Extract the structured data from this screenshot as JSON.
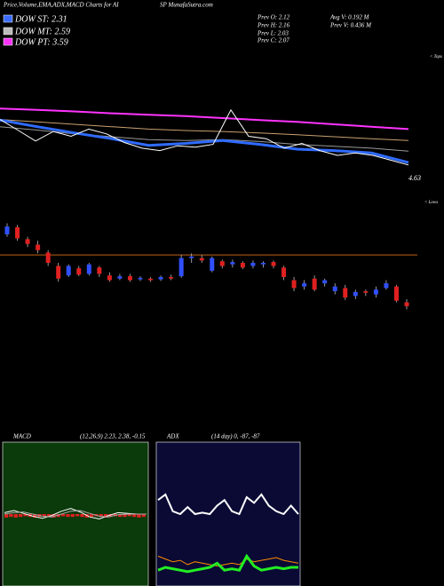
{
  "header": {
    "title_left": "Price,Volume,EMA,ADX,MACD Charts for AI",
    "title_right": "SP MunafaSutra.com",
    "dow_st": "DOW ST: 2.31",
    "dow_mt": "DOW MT: 2.59",
    "dow_pt": "DOW PT: 3.59",
    "prev_o": "Prev  O: 2.12",
    "prev_h": "Prev  H: 2.16",
    "prev_l": "Prev  L: 2.03",
    "prev_c": "Prev  C: 2.07",
    "avg_v": "Avg V: 0.192  M",
    "prev_v": "Prev  V: 0.436  M"
  },
  "chart_data": [
    {
      "type": "line",
      "annotations": [
        "4.63",
        "< Tops",
        "< Lows"
      ],
      "ylim": [
        1.8,
        4.4
      ],
      "series": [
        {
          "color": "#ff33ff",
          "width": 2,
          "values": [
            3.43,
            3.4,
            3.37,
            3.33,
            3.3,
            3.27,
            3.23,
            3.19,
            3.15,
            3.1,
            3.05,
            3.0
          ]
        },
        {
          "color": "#c8a070",
          "width": 1,
          "values": [
            3.2,
            3.15,
            3.1,
            3.05,
            3.0,
            2.97,
            2.95,
            2.92,
            2.88,
            2.84,
            2.8,
            2.76
          ]
        },
        {
          "color": "#999999",
          "width": 1,
          "values": [
            3.05,
            2.98,
            2.9,
            2.84,
            2.78,
            2.76,
            2.78,
            2.74,
            2.68,
            2.64,
            2.6,
            2.54
          ]
        },
        {
          "color": "#2f6bff",
          "width": 3,
          "values": [
            3.19,
            3.05,
            2.92,
            2.8,
            2.66,
            2.7,
            2.76,
            2.68,
            2.58,
            2.55,
            2.5,
            2.3
          ]
        },
        {
          "color": "#ffffff",
          "width": 1,
          "values": [
            3.2,
            2.98,
            2.75,
            2.95,
            2.85,
            3.0,
            2.9,
            2.72,
            2.6,
            2.55,
            2.65,
            2.62,
            2.68,
            3.4,
            2.85,
            2.8,
            2.6,
            2.7,
            2.55,
            2.45,
            2.5,
            2.45,
            2.35,
            2.25
          ]
        }
      ]
    },
    {
      "type": "candlestick",
      "ylim": [
        1.9,
        3.25
      ],
      "hline": 2.72,
      "up_color": "#3050ff",
      "down_color": "#e02020",
      "open": [
        2.98,
        3.07,
        2.92,
        2.85,
        2.75,
        2.58,
        2.46,
        2.55,
        2.48,
        2.56,
        2.46,
        2.42,
        2.45,
        2.41,
        2.42,
        2.41,
        2.44,
        2.45,
        2.68,
        2.68,
        2.52,
        2.64,
        2.6,
        2.62,
        2.58,
        2.6,
        2.63,
        2.56,
        2.4,
        2.32,
        2.42,
        2.36,
        2.26,
        2.3,
        2.2,
        2.26,
        2.22,
        2.3,
        2.32,
        2.12
      ],
      "high": [
        3.12,
        3.1,
        2.95,
        2.9,
        2.78,
        2.62,
        2.6,
        2.58,
        2.62,
        2.58,
        2.5,
        2.48,
        2.48,
        2.45,
        2.44,
        2.46,
        2.47,
        2.72,
        2.74,
        2.72,
        2.7,
        2.66,
        2.66,
        2.64,
        2.65,
        2.64,
        2.65,
        2.58,
        2.44,
        2.4,
        2.46,
        2.42,
        2.36,
        2.34,
        2.28,
        2.28,
        2.32,
        2.4,
        2.34,
        2.16
      ],
      "low": [
        2.95,
        2.9,
        2.82,
        2.74,
        2.58,
        2.38,
        2.44,
        2.45,
        2.46,
        2.44,
        2.38,
        2.4,
        2.38,
        2.39,
        2.38,
        2.39,
        2.4,
        2.43,
        2.62,
        2.62,
        2.5,
        2.55,
        2.56,
        2.54,
        2.55,
        2.56,
        2.55,
        2.4,
        2.26,
        2.28,
        2.26,
        2.32,
        2.22,
        2.15,
        2.16,
        2.2,
        2.18,
        2.28,
        2.12,
        2.03
      ],
      "close": [
        3.08,
        2.93,
        2.86,
        2.78,
        2.62,
        2.42,
        2.58,
        2.47,
        2.6,
        2.48,
        2.4,
        2.45,
        2.4,
        2.43,
        2.4,
        2.44,
        2.42,
        2.68,
        2.7,
        2.65,
        2.68,
        2.58,
        2.63,
        2.56,
        2.62,
        2.62,
        2.58,
        2.44,
        2.3,
        2.36,
        2.28,
        2.4,
        2.32,
        2.18,
        2.25,
        2.24,
        2.28,
        2.36,
        2.14,
        2.07
      ]
    },
    {
      "type": "macd",
      "title": "MACD",
      "subtitle": "(12,26,9) 2.23, 2.38, -0.15",
      "ylim": [
        -1,
        1
      ],
      "histogram_color": "#e02020",
      "histogram": [
        -0.05,
        -0.04,
        -0.05,
        -0.04,
        -0.03,
        -0.04,
        -0.05,
        -0.04,
        -0.03,
        -0.04,
        -0.05,
        -0.04,
        -0.03,
        -0.04,
        -0.04,
        -0.03,
        -0.04,
        -0.05,
        -0.04,
        -0.03,
        -0.04,
        -0.05,
        -0.04,
        -0.03,
        -0.04,
        -0.04,
        -0.03,
        -0.04,
        -0.05,
        -0.04
      ],
      "series": [
        {
          "color": "#ffffff",
          "values": [
            0.02,
            0.05,
            0.01,
            -0.03,
            -0.06,
            -0.02,
            0.04,
            0.08,
            0.03,
            -0.04,
            -0.07,
            -0.02,
            0.02,
            0.01,
            0.0,
            0.0
          ]
        },
        {
          "color": "#aaaaaa",
          "values": [
            0.0,
            0.02,
            0.03,
            0.0,
            -0.03,
            -0.04,
            0.0,
            0.04,
            0.05,
            0.01,
            -0.03,
            -0.04,
            -0.01,
            0.0,
            0.0,
            0.0
          ]
        }
      ]
    },
    {
      "type": "line",
      "title": "ADX",
      "subtitle": "(14 day) 0, -87, -87",
      "ylim": [
        0,
        100
      ],
      "series": [
        {
          "color": "#ffffff",
          "width": 2,
          "values": [
            60,
            64,
            52,
            50,
            55,
            50,
            51,
            50,
            56,
            60,
            52,
            50,
            62,
            58,
            64,
            56,
            52,
            50,
            56,
            50
          ]
        },
        {
          "color": "#ff8800",
          "width": 1,
          "values": [
            20,
            18,
            16,
            17,
            14,
            16,
            15,
            14,
            13,
            14,
            15,
            14,
            18,
            16,
            17,
            18,
            19,
            17,
            16,
            15
          ]
        },
        {
          "color": "#22ee22",
          "width": 3,
          "values": [
            10,
            12,
            11,
            10,
            9,
            10,
            11,
            12,
            15,
            10,
            11,
            10,
            20,
            13,
            10,
            11,
            12,
            11,
            12,
            12
          ]
        }
      ]
    }
  ]
}
